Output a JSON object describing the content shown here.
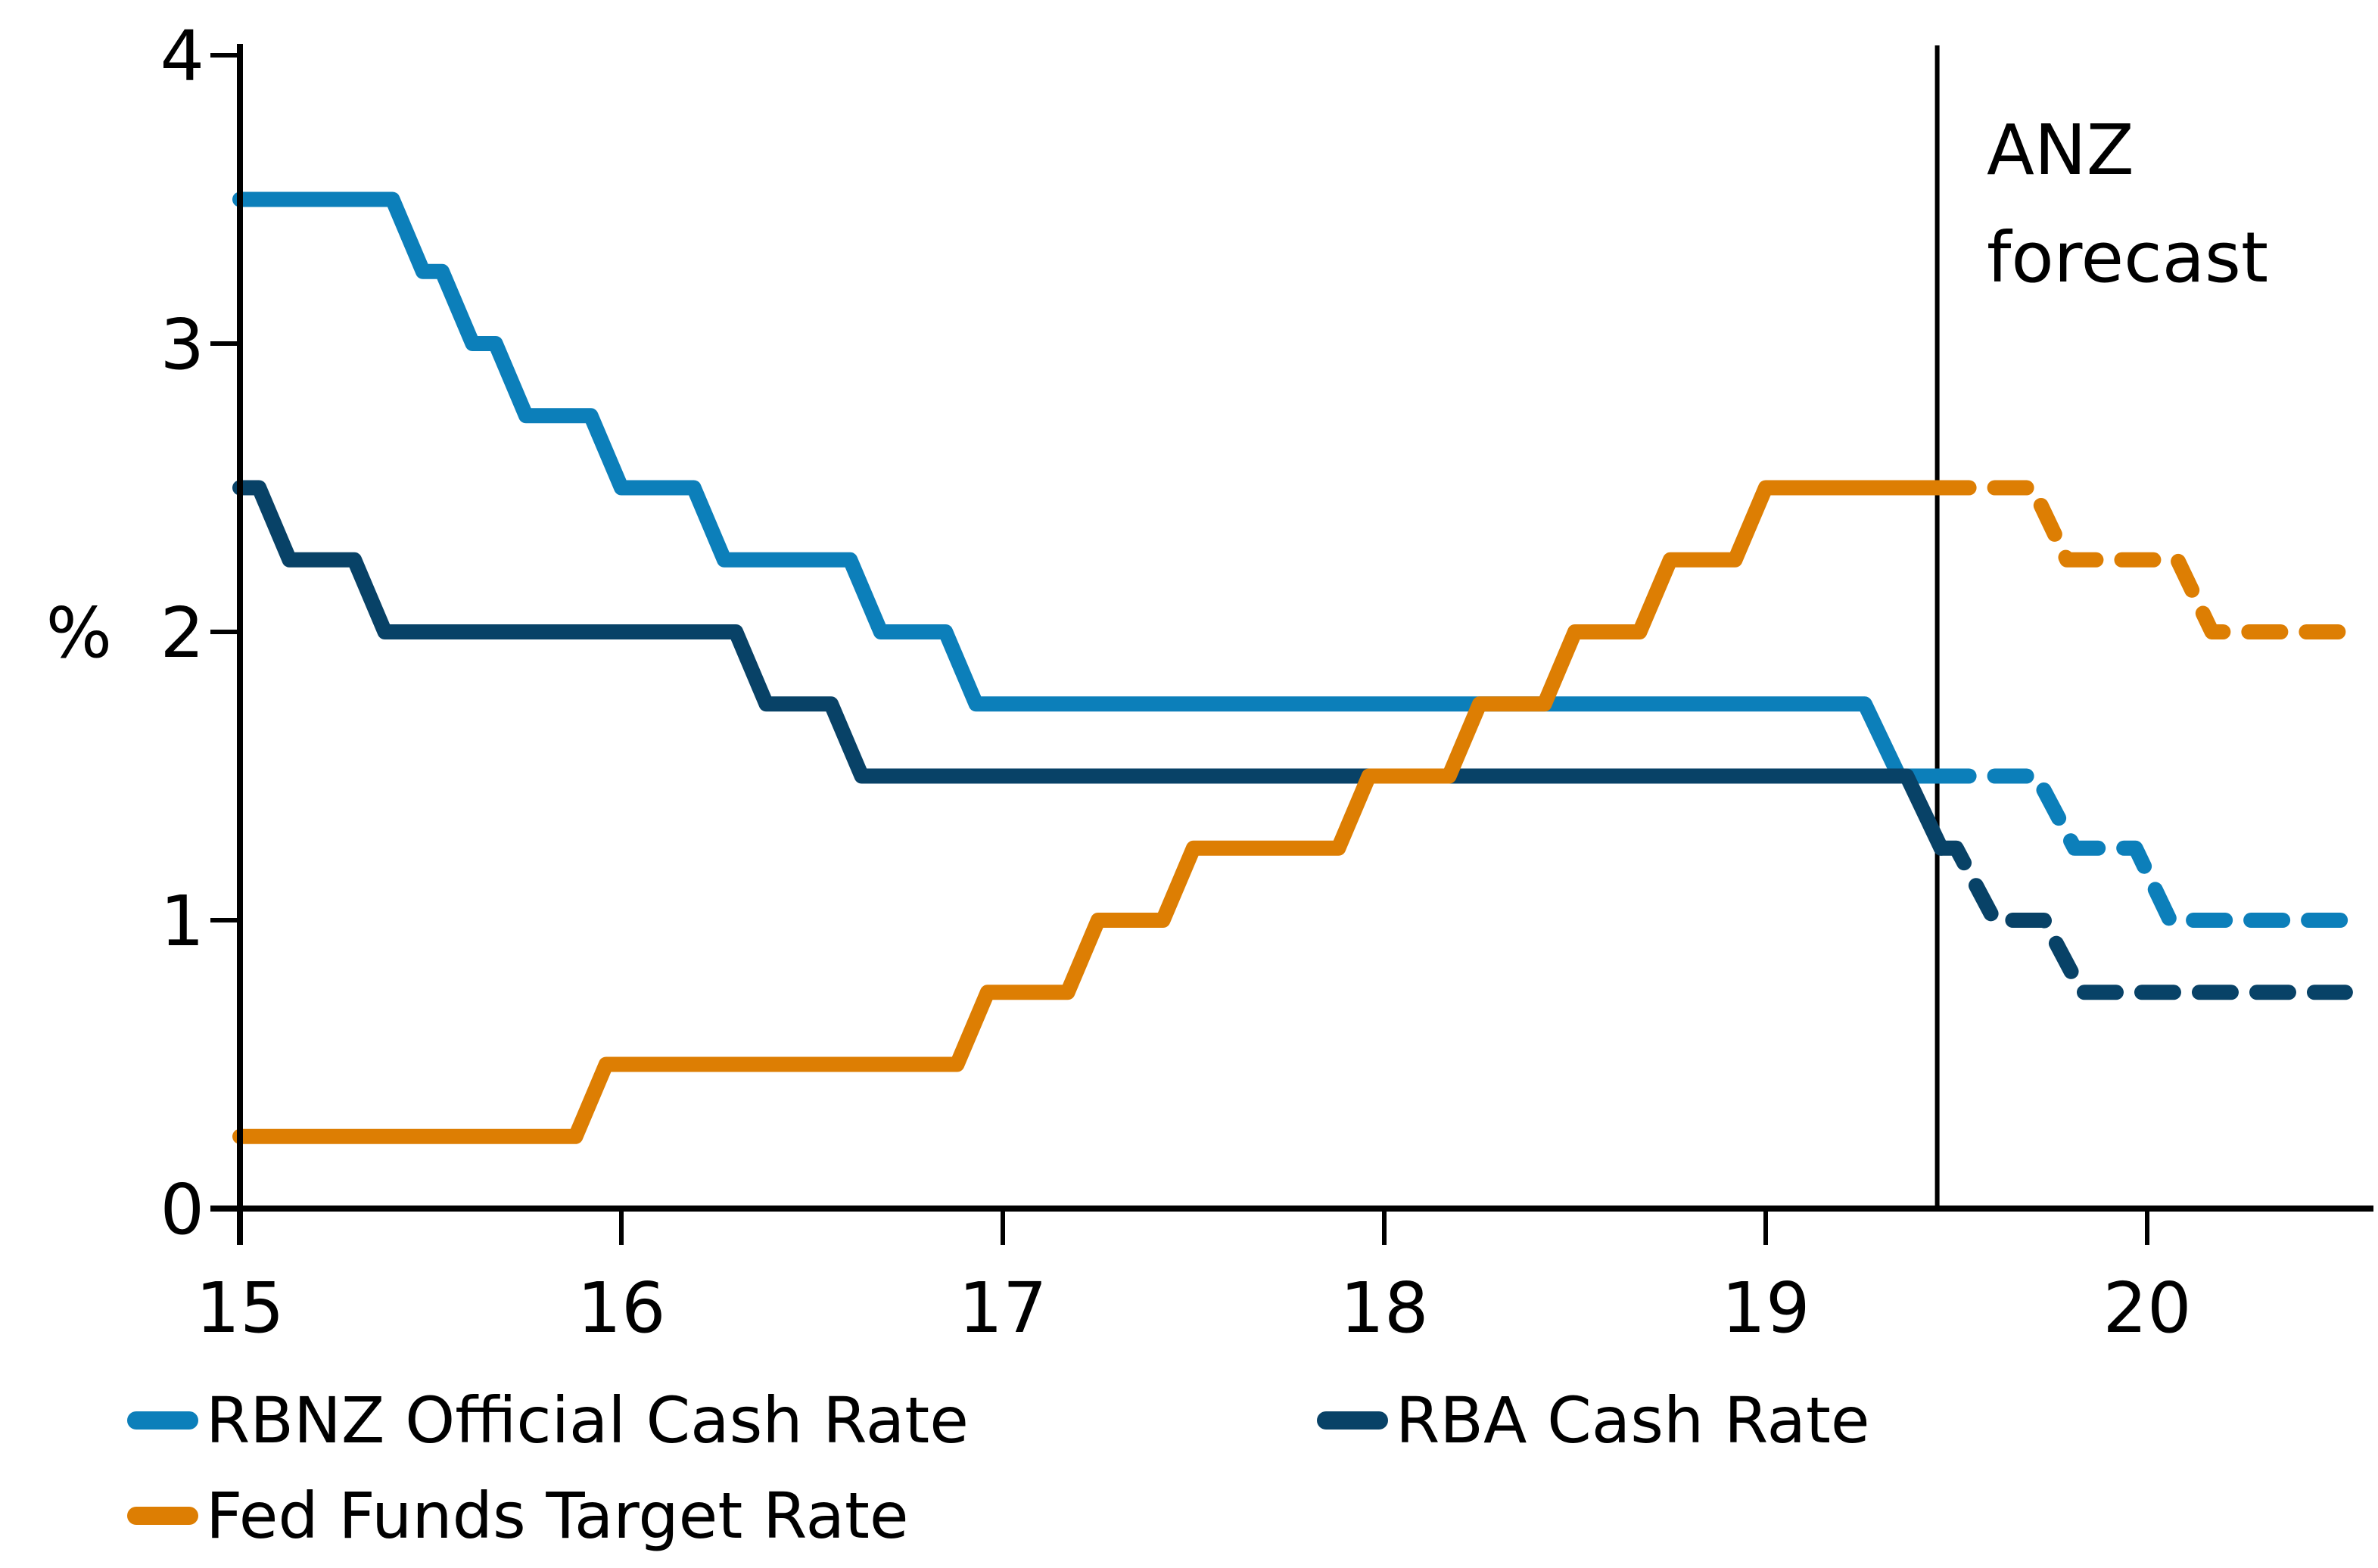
{
  "figure": {
    "background": "#ffffff"
  },
  "chart_data": {
    "type": "line",
    "title": "",
    "xlabel": "",
    "ylabel": "%",
    "xlim": [
      15,
      20.55
    ],
    "ylim": [
      0,
      4
    ],
    "grid": false,
    "legend_position": "bottom",
    "x_tick_values": [
      15,
      16,
      17,
      18,
      19,
      20
    ],
    "x_tick_labels": [
      "15",
      "16",
      "17",
      "18",
      "19",
      "20"
    ],
    "y_tick_values": [
      4,
      3,
      2,
      1,
      0
    ],
    "y_tick_labels": [
      "4",
      "3",
      "2",
      "1",
      "0"
    ],
    "forecast_divider_x": 19.45,
    "annotation": {
      "line1": "ANZ",
      "line2": "forecast"
    },
    "colors": {
      "rbnz": "#0c7fba",
      "rba": "#084267",
      "fed": "#dd7e03",
      "axis": "#000000"
    },
    "series": [
      {
        "id": "rbnz-actual",
        "name": "RBNZ Official Cash Rate",
        "color": "#0c7fba",
        "style": "solid",
        "points": [
          [
            15.0,
            3.5
          ],
          [
            15.4,
            3.5
          ],
          [
            15.48,
            3.25
          ],
          [
            15.53,
            3.25
          ],
          [
            15.61,
            3.0
          ],
          [
            15.67,
            3.0
          ],
          [
            15.75,
            2.75
          ],
          [
            15.92,
            2.75
          ],
          [
            16.0,
            2.5
          ],
          [
            16.19,
            2.5
          ],
          [
            16.27,
            2.25
          ],
          [
            16.6,
            2.25
          ],
          [
            16.68,
            2.0
          ],
          [
            16.85,
            2.0
          ],
          [
            16.93,
            1.75
          ],
          [
            19.26,
            1.75
          ],
          [
            19.35,
            1.5
          ],
          [
            19.45,
            1.5
          ]
        ]
      },
      {
        "id": "rbnz-forecast",
        "name": "RBNZ Official Cash Rate (ANZ forecast)",
        "color": "#0c7fba",
        "style": "dashed",
        "points": [
          [
            19.45,
            1.5
          ],
          [
            19.71,
            1.5
          ],
          [
            19.81,
            1.25
          ],
          [
            19.97,
            1.25
          ],
          [
            20.06,
            1.0
          ],
          [
            20.52,
            1.0
          ]
        ]
      },
      {
        "id": "rba-actual",
        "name": "RBA Cash Rate",
        "color": "#084267",
        "style": "solid",
        "points": [
          [
            15.0,
            2.5
          ],
          [
            15.05,
            2.5
          ],
          [
            15.13,
            2.25
          ],
          [
            15.3,
            2.25
          ],
          [
            15.38,
            2.0
          ],
          [
            16.3,
            2.0
          ],
          [
            16.38,
            1.75
          ],
          [
            16.55,
            1.75
          ],
          [
            16.63,
            1.5
          ],
          [
            19.37,
            1.5
          ],
          [
            19.46,
            1.25
          ]
        ]
      },
      {
        "id": "rba-forecast",
        "name": "RBA Cash Rate (ANZ forecast)",
        "color": "#084267",
        "style": "dashed",
        "points": [
          [
            19.46,
            1.25
          ],
          [
            19.5,
            1.25
          ],
          [
            19.6,
            1.0
          ],
          [
            19.73,
            1.0
          ],
          [
            19.83,
            0.75
          ],
          [
            20.52,
            0.75
          ]
        ]
      },
      {
        "id": "fed-actual",
        "name": "Fed Funds Target Rate",
        "color": "#dd7e03",
        "style": "solid",
        "points": [
          [
            15.0,
            0.25
          ],
          [
            15.88,
            0.25
          ],
          [
            15.96,
            0.5
          ],
          [
            16.88,
            0.5
          ],
          [
            16.96,
            0.75
          ],
          [
            17.17,
            0.75
          ],
          [
            17.25,
            1.0
          ],
          [
            17.42,
            1.0
          ],
          [
            17.5,
            1.25
          ],
          [
            17.88,
            1.25
          ],
          [
            17.96,
            1.5
          ],
          [
            18.17,
            1.5
          ],
          [
            18.25,
            1.75
          ],
          [
            18.42,
            1.75
          ],
          [
            18.5,
            2.0
          ],
          [
            18.67,
            2.0
          ],
          [
            18.75,
            2.25
          ],
          [
            18.92,
            2.25
          ],
          [
            19.0,
            2.5
          ],
          [
            19.45,
            2.5
          ]
        ]
      },
      {
        "id": "fed-forecast",
        "name": "Fed Funds Target Rate (ANZ forecast)",
        "color": "#dd7e03",
        "style": "dashed",
        "points": [
          [
            19.45,
            2.5
          ],
          [
            19.7,
            2.5
          ],
          [
            19.79,
            2.25
          ],
          [
            20.08,
            2.25
          ],
          [
            20.17,
            2.0
          ],
          [
            20.52,
            2.0
          ]
        ]
      }
    ],
    "legend": {
      "items": [
        {
          "id": "rbnz",
          "label": "RBNZ Official Cash Rate",
          "color": "#0c7fba"
        },
        {
          "id": "rba",
          "label": "RBA Cash Rate",
          "color": "#084267"
        },
        {
          "id": "fed",
          "label": "Fed Funds Target Rate",
          "color": "#dd7e03"
        }
      ]
    }
  }
}
